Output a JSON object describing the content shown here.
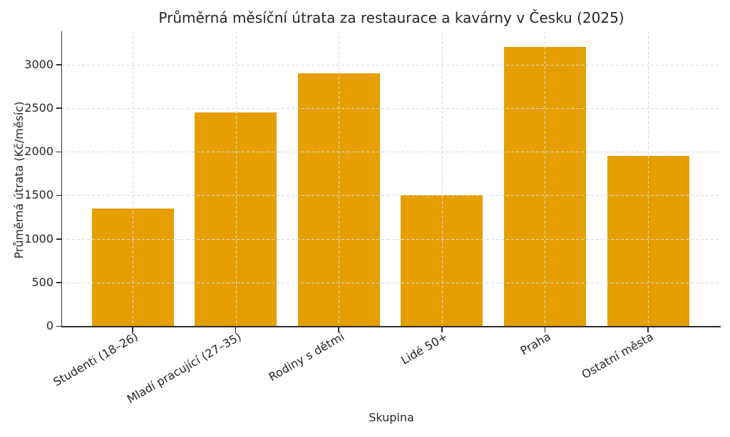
{
  "chart_data": {
    "type": "bar",
    "title": "Průměrná měsíční útrata za restaurace a kavárny v Česku (2025)",
    "xlabel": "Skupina",
    "ylabel": "Průměrná útrata (Kč/měsíc)",
    "categories": [
      "Studenti (18–26)",
      "Mladí pracující (27–35)",
      "Rodiny s dětmi",
      "Lidé 50+",
      "Praha",
      "Ostatní města"
    ],
    "values": [
      1350,
      2450,
      2900,
      1500,
      3200,
      1950
    ],
    "yticks": [
      0,
      500,
      1000,
      1500,
      2000,
      2500,
      3000
    ],
    "ylim": [
      0,
      3380
    ],
    "grid": "dashed, drawn above bars, horizontal at yticks and vertical at bar centers",
    "legend": "none",
    "colors": {
      "bar": "#E69F00",
      "grid": "#d9d9d9",
      "spine": "#2e2e2e",
      "text": "#262626",
      "background": "#ffffff"
    }
  }
}
